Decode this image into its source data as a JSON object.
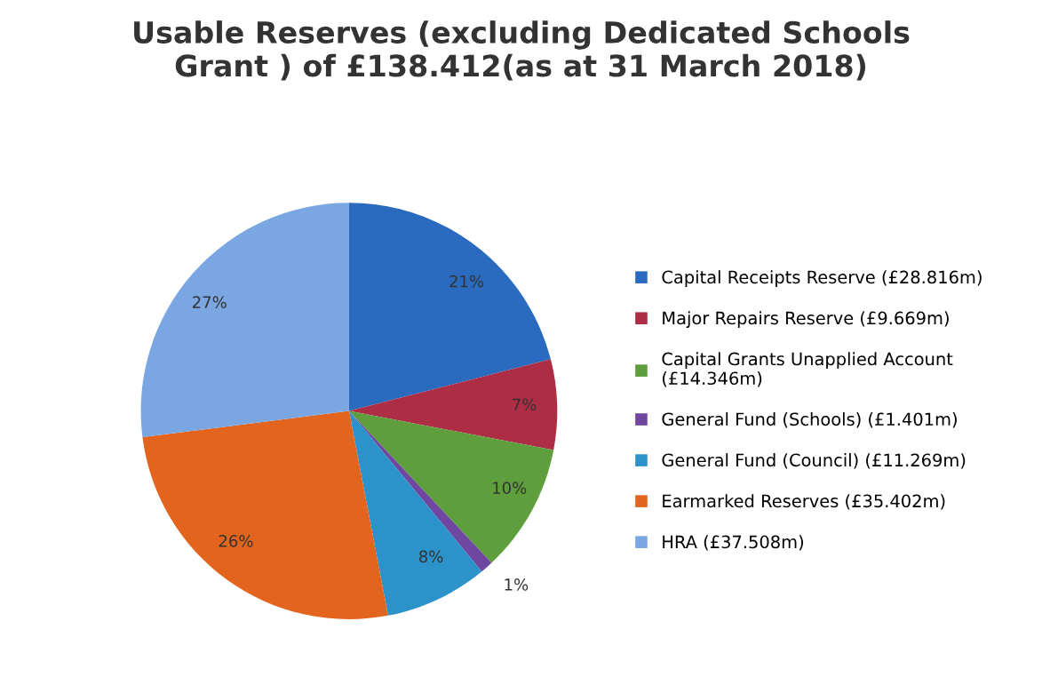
{
  "chart_data": {
    "type": "pie",
    "title": "Usable Reserves (excluding Dedicated Schools\nGrant ) of £138.412(as at 31 March 2018)",
    "categories": [
      "Capital Receipts Reserve (£28.816m)",
      "Major Repairs Reserve (£9.669m)",
      "Capital Grants Unapplied Account\n(£14.346m)",
      "General Fund (Schools) (£1.401m)",
      "General Fund (Council) (£11.269m)",
      "Earmarked Reserves (£35.402m)",
      "HRA (£37.508m)"
    ],
    "values": [
      21,
      7,
      10,
      1,
      8,
      26,
      27
    ],
    "value_labels": [
      "21%",
      "7%",
      "10%",
      "1%",
      "8%",
      "26%",
      "27%"
    ],
    "colors": [
      "#2a6bbf",
      "#ad2d45",
      "#5e9e3c",
      "#7047a0",
      "#2b93c9",
      "#e3641c",
      "#7aa6e2"
    ],
    "legend": "right"
  }
}
